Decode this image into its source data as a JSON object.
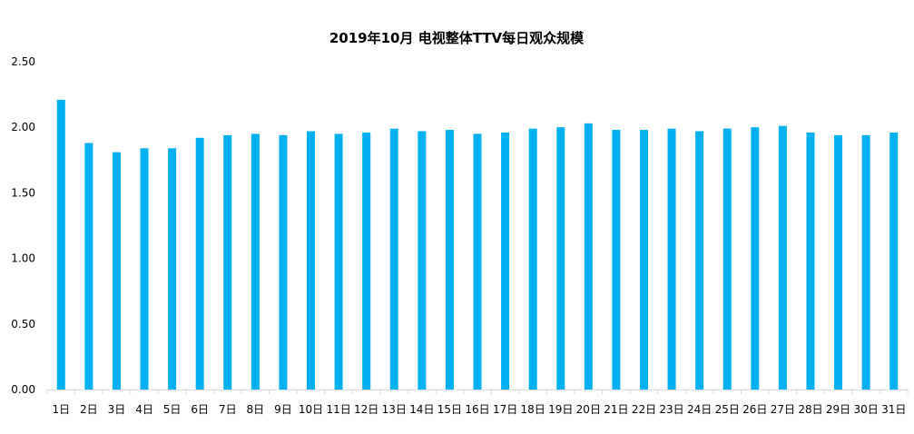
{
  "chart_data": {
    "type": "bar",
    "title": "2019年10月 电视整体TTV每日观众规模",
    "xlabel": "",
    "ylabel": "",
    "categories": [
      "1日",
      "2日",
      "3日",
      "4日",
      "5日",
      "6日",
      "7日",
      "8日",
      "9日",
      "10日",
      "11日",
      "12日",
      "13日",
      "14日",
      "15日",
      "16日",
      "17日",
      "18日",
      "19日",
      "20日",
      "21日",
      "22日",
      "23日",
      "24日",
      "25日",
      "26日",
      "27日",
      "28日",
      "29日",
      "30日",
      "31日"
    ],
    "values": [
      2.21,
      1.88,
      1.81,
      1.84,
      1.84,
      1.92,
      1.94,
      1.95,
      1.94,
      1.97,
      1.95,
      1.96,
      1.99,
      1.97,
      1.98,
      1.95,
      1.96,
      1.99,
      2.0,
      2.03,
      1.98,
      1.98,
      1.99,
      1.97,
      1.99,
      2.0,
      2.01,
      1.96,
      1.94,
      1.94,
      1.96
    ],
    "yticks": [
      "0.00",
      "0.50",
      "1.00",
      "1.50",
      "2.00",
      "2.50"
    ],
    "ylim": [
      0,
      2.5
    ],
    "grid": false,
    "legend": "none",
    "bar_color": "#00B0F0",
    "axis_color": "#D9D9D9"
  }
}
